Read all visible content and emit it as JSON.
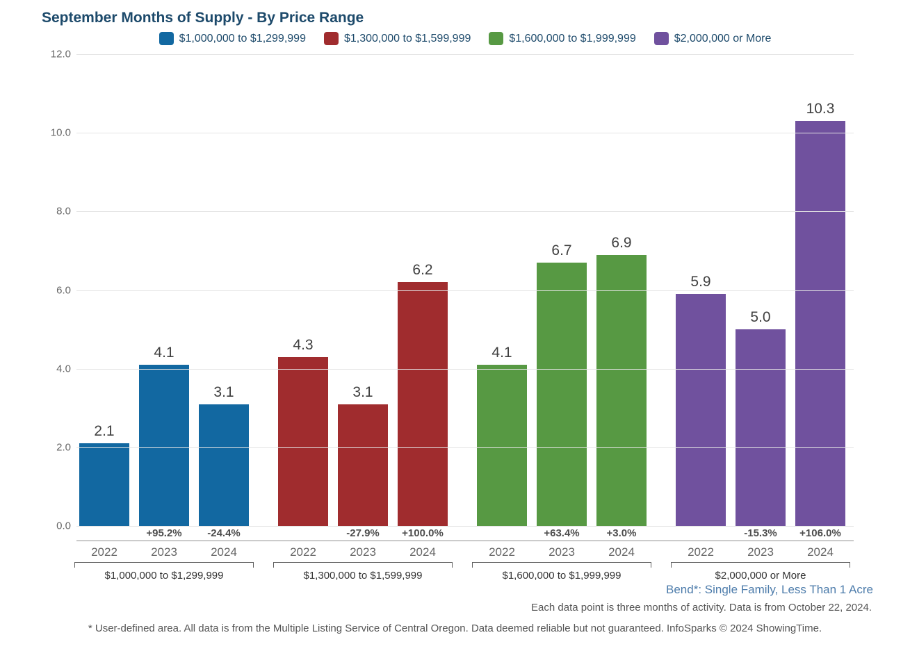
{
  "chart_data": {
    "type": "bar",
    "title": "September Months of Supply - By Price Range",
    "ylabel": "",
    "xlabel": "",
    "ylim": [
      0,
      12
    ],
    "yticks": [
      0,
      2,
      4,
      6,
      8,
      10,
      12
    ],
    "grid": true,
    "legend_position": "top-center",
    "categories": [
      "2022",
      "2023",
      "2024"
    ],
    "series": [
      {
        "name": "$1,000,000 to $1,299,999",
        "color": "#1268A1",
        "values": [
          2.1,
          4.1,
          3.1
        ],
        "changes": [
          "",
          "+95.2%",
          "-24.4%"
        ]
      },
      {
        "name": "$1,300,000 to $1,599,999",
        "color": "#A02C2E",
        "values": [
          4.3,
          3.1,
          6.2
        ],
        "changes": [
          "",
          "-27.9%",
          "+100.0%"
        ]
      },
      {
        "name": "$1,600,000 to $1,999,999",
        "color": "#579943",
        "values": [
          4.1,
          6.7,
          6.9
        ],
        "changes": [
          "",
          "+63.4%",
          "+3.0%"
        ]
      },
      {
        "name": "$2,000,000 or More",
        "color": "#70519E",
        "values": [
          5.9,
          5.0,
          10.3
        ],
        "changes": [
          "",
          "-15.3%",
          "+106.0%"
        ]
      }
    ]
  },
  "notes": {
    "location": "Bend*: Single Family, Less Than 1 Acre",
    "data_note": "Each data point is three months of activity. Data is from October 22, 2024.",
    "disclaimer": "* User-defined area. All data is from the Multiple Listing Service of Central Oregon. Data deemed reliable but not guaranteed. InfoSparks © 2024 ShowingTime."
  }
}
